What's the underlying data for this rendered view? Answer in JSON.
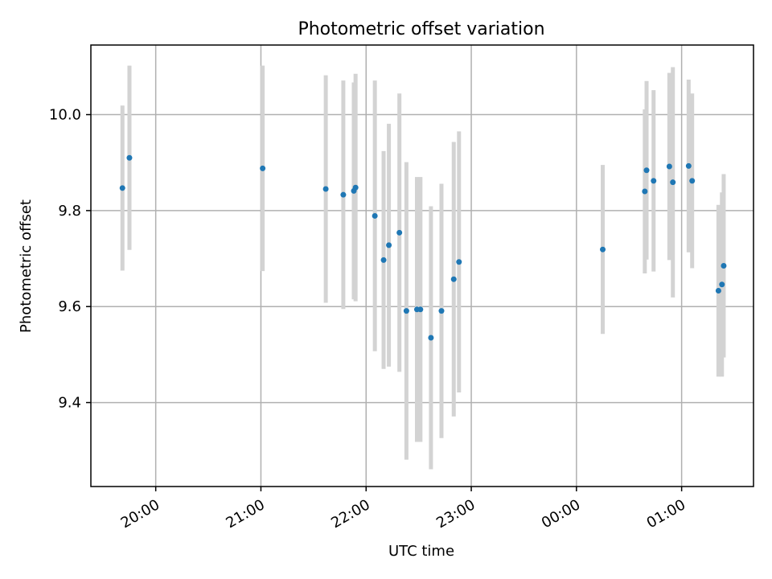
{
  "chart_data": {
    "type": "scatter",
    "title": "Photometric offset variation",
    "xlabel": "UTC time",
    "ylabel": "Photometric offset",
    "xlim": [
      "2023-01-01T19:23:00",
      "2023-01-02T01:41:00"
    ],
    "ylim": [
      9.225,
      10.145
    ],
    "x_ticks": [
      "2023-01-01T20:00:00",
      "2023-01-01T21:00:00",
      "2023-01-01T22:00:00",
      "2023-01-01T23:00:00",
      "2023-01-02T00:00:00",
      "2023-01-02T01:00:00"
    ],
    "x_tick_labels": [
      "20:00",
      "21:00",
      "22:00",
      "23:00",
      "00:00",
      "01:00"
    ],
    "y_ticks": [
      9.4,
      9.6,
      9.8,
      10.0
    ],
    "y_tick_labels": [
      "9.4",
      "9.6",
      "9.8",
      "10.0"
    ],
    "x_tick_rotation_deg": 30,
    "grid": true,
    "legend": "none",
    "colors": {
      "point": "#1f77b4",
      "errorbar": "#d3d3d3",
      "grid": "#b0b0b0",
      "frame": "#000000"
    },
    "points": [
      {
        "t": "2023-01-01T19:41:00",
        "y": 9.847,
        "err": 0.172
      },
      {
        "t": "2023-01-01T19:45:00",
        "y": 9.91,
        "err": 0.192
      },
      {
        "t": "2023-01-01T21:01:00",
        "y": 9.888,
        "err": 0.214
      },
      {
        "t": "2023-01-01T21:37:00",
        "y": 9.845,
        "err": 0.237
      },
      {
        "t": "2023-01-01T21:47:00",
        "y": 9.833,
        "err": 0.238
      },
      {
        "t": "2023-01-01T21:53:00",
        "y": 9.841,
        "err": 0.226
      },
      {
        "t": "2023-01-01T21:54:00",
        "y": 9.848,
        "err": 0.237
      },
      {
        "t": "2023-01-01T22:05:00",
        "y": 9.789,
        "err": 0.282
      },
      {
        "t": "2023-01-01T22:10:00",
        "y": 9.697,
        "err": 0.227
      },
      {
        "t": "2023-01-01T22:13:00",
        "y": 9.728,
        "err": 0.253
      },
      {
        "t": "2023-01-01T22:19:00",
        "y": 9.754,
        "err": 0.29
      },
      {
        "t": "2023-01-01T22:23:00",
        "y": 9.591,
        "err": 0.31
      },
      {
        "t": "2023-01-01T22:29:00",
        "y": 9.594,
        "err": 0.276
      },
      {
        "t": "2023-01-01T22:31:00",
        "y": 9.594,
        "err": 0.276
      },
      {
        "t": "2023-01-01T22:37:00",
        "y": 9.535,
        "err": 0.274
      },
      {
        "t": "2023-01-01T22:43:00",
        "y": 9.591,
        "err": 0.265
      },
      {
        "t": "2023-01-01T22:50:00",
        "y": 9.657,
        "err": 0.286
      },
      {
        "t": "2023-01-01T22:53:00",
        "y": 9.693,
        "err": 0.272
      },
      {
        "t": "2023-01-02T00:15:00",
        "y": 9.719,
        "err": 0.176
      },
      {
        "t": "2023-01-02T00:39:00",
        "y": 9.84,
        "err": 0.171
      },
      {
        "t": "2023-01-02T00:40:00",
        "y": 9.884,
        "err": 0.186
      },
      {
        "t": "2023-01-02T00:44:00",
        "y": 9.862,
        "err": 0.189
      },
      {
        "t": "2023-01-02T00:53:00",
        "y": 9.892,
        "err": 0.195
      },
      {
        "t": "2023-01-02T00:55:00",
        "y": 9.859,
        "err": 0.24
      },
      {
        "t": "2023-01-02T01:04:00",
        "y": 9.893,
        "err": 0.18
      },
      {
        "t": "2023-01-02T01:06:00",
        "y": 9.862,
        "err": 0.182
      },
      {
        "t": "2023-01-02T01:21:00",
        "y": 9.633,
        "err": 0.179
      },
      {
        "t": "2023-01-02T01:23:00",
        "y": 9.646,
        "err": 0.192
      },
      {
        "t": "2023-01-02T01:24:00",
        "y": 9.685,
        "err": 0.191
      }
    ]
  }
}
